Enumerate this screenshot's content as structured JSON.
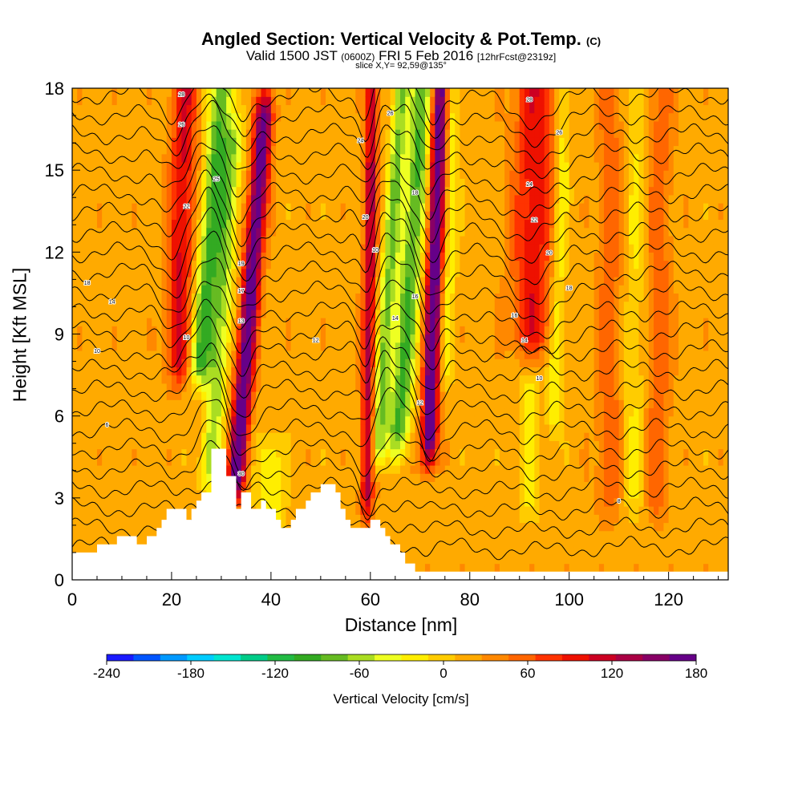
{
  "title": {
    "main": "Angled Section: Vertical Velocity & Pot.Temp.",
    "main_unit": "(C)",
    "valid_prefix": "Valid 1500 JST",
    "valid_z": "(0600Z)",
    "valid_date": "FRI 5 Feb 2016",
    "forecast": "[12hrFcst@2319z]",
    "slice": "slice X,Y= 92,59@135°"
  },
  "chart_data": {
    "type": "heatmap",
    "xlabel": "Distance [nm]",
    "ylabel": "Height [Kft MSL]",
    "xlim": [
      0,
      132
    ],
    "ylim": [
      0,
      18
    ],
    "xticks": [
      0,
      20,
      40,
      60,
      80,
      100,
      120
    ],
    "yticks": [
      0,
      3,
      6,
      9,
      12,
      15,
      18
    ],
    "colorbar": {
      "label": "Vertical Velocity [cm/s]",
      "ticks": [
        -240,
        -180,
        -120,
        -60,
        0,
        60,
        120,
        180
      ],
      "range": [
        -240,
        180
      ],
      "colors": [
        "#1a1aff",
        "#0055ff",
        "#0099ff",
        "#00ccff",
        "#00e5d0",
        "#00cc88",
        "#22bb44",
        "#33aa22",
        "#66bb22",
        "#aadd22",
        "#eeff22",
        "#ffee00",
        "#ffcc00",
        "#ffaa00",
        "#ff8800",
        "#ff6600",
        "#ff3300",
        "#ee1100",
        "#cc0022",
        "#aa0044",
        "#880066",
        "#660088"
      ]
    },
    "terrain": [
      [
        0,
        1
      ],
      [
        5,
        1
      ],
      [
        5,
        1.3
      ],
      [
        9,
        1.3
      ],
      [
        9,
        1.6
      ],
      [
        13,
        1.6
      ],
      [
        13,
        1.3
      ],
      [
        15,
        1.3
      ],
      [
        15,
        1.6
      ],
      [
        17,
        1.6
      ],
      [
        17,
        1.9
      ],
      [
        18,
        1.9
      ],
      [
        18,
        2.2
      ],
      [
        19,
        2.2
      ],
      [
        19,
        2.6
      ],
      [
        23,
        2.6
      ],
      [
        23,
        2.2
      ],
      [
        24,
        2.2
      ],
      [
        24,
        2.6
      ],
      [
        25,
        2.6
      ],
      [
        25,
        2.9
      ],
      [
        26,
        2.9
      ],
      [
        26,
        3.2
      ],
      [
        28,
        3.2
      ],
      [
        28,
        4.8
      ],
      [
        31,
        4.8
      ],
      [
        31,
        3.8
      ],
      [
        33,
        3.8
      ],
      [
        33,
        2.6
      ],
      [
        34,
        2.6
      ],
      [
        34,
        3.2
      ],
      [
        36,
        3.2
      ],
      [
        36,
        2.6
      ],
      [
        38,
        2.6
      ],
      [
        38,
        2.9
      ],
      [
        39,
        2.9
      ],
      [
        39,
        2.6
      ],
      [
        41,
        2.6
      ],
      [
        41,
        2.2
      ],
      [
        42,
        2.2
      ],
      [
        42,
        1.9
      ],
      [
        44,
        1.9
      ],
      [
        44,
        2.2
      ],
      [
        45,
        2.2
      ],
      [
        45,
        2.6
      ],
      [
        47,
        2.6
      ],
      [
        47,
        2.9
      ],
      [
        48,
        2.9
      ],
      [
        48,
        3.2
      ],
      [
        50,
        3.2
      ],
      [
        50,
        3.5
      ],
      [
        53,
        3.5
      ],
      [
        53,
        3.2
      ],
      [
        54,
        3.2
      ],
      [
        54,
        2.6
      ],
      [
        55,
        2.6
      ],
      [
        55,
        2.2
      ],
      [
        56,
        2.2
      ],
      [
        56,
        1.9
      ],
      [
        60,
        1.9
      ],
      [
        60,
        2.2
      ],
      [
        62,
        2.2
      ],
      [
        62,
        1.9
      ],
      [
        63,
        1.9
      ],
      [
        63,
        1.6
      ],
      [
        64,
        1.6
      ],
      [
        64,
        1.3
      ],
      [
        66,
        1.3
      ],
      [
        66,
        1
      ],
      [
        67,
        1
      ],
      [
        67,
        0.6
      ],
      [
        69,
        0.6
      ],
      [
        69,
        0.3
      ],
      [
        132,
        0.3
      ],
      [
        132,
        0
      ]
    ],
    "bands": [
      {
        "x": 21,
        "w": 2.5,
        "v": 90,
        "top": 18,
        "bottom": 8,
        "tilt": 0.4
      },
      {
        "x": 25,
        "w": 2.2,
        "v": -110,
        "top": 18,
        "bottom": 8,
        "tilt": 1.2
      },
      {
        "x": 28.5,
        "w": 2.0,
        "v": -80,
        "top": 16,
        "bottom": 4,
        "tilt": 1.1
      },
      {
        "x": 34,
        "w": 1.8,
        "v": 170,
        "top": 17,
        "bottom": 3.8,
        "tilt": 1.2
      },
      {
        "x": 59.5,
        "w": 1.3,
        "v": 110,
        "top": 18,
        "bottom": 3,
        "tilt": 0.2
      },
      {
        "x": 62,
        "w": 1.6,
        "v": -90,
        "top": 18,
        "bottom": 5,
        "tilt": 1.0
      },
      {
        "x": 66,
        "w": 2.2,
        "v": -110,
        "top": 18,
        "bottom": 5.5,
        "tilt": 1.1
      },
      {
        "x": 72,
        "w": 1.6,
        "v": 175,
        "top": 18,
        "bottom": 5,
        "tilt": 0.5
      },
      {
        "x": 75,
        "w": 1.5,
        "v": -40,
        "top": 18,
        "bottom": 8,
        "tilt": 0.4
      },
      {
        "x": 92,
        "w": 4.0,
        "v": 80,
        "top": 18,
        "bottom": 9,
        "tilt": 0.3
      },
      {
        "x": 97,
        "w": 1.5,
        "v": -45,
        "top": 18,
        "bottom": 6,
        "tilt": 0.5
      },
      {
        "x": 108,
        "w": 2.5,
        "v": 40,
        "top": 18,
        "bottom": 3,
        "tilt": 0.1
      },
      {
        "x": 113,
        "w": 2.0,
        "v": -30,
        "top": 18,
        "bottom": 3,
        "tilt": 0.1
      },
      {
        "x": 118,
        "w": 2.5,
        "v": 40,
        "top": 18,
        "bottom": 3,
        "tilt": 0.1
      },
      {
        "x": 40,
        "w": 2.5,
        "v": -50,
        "top": 4.5,
        "bottom": 2,
        "tilt": 0.0
      },
      {
        "x": 92,
        "w": 2.0,
        "v": -35,
        "top": 7,
        "bottom": 3,
        "tilt": 0.0
      }
    ],
    "isentropes": {
      "count": 24,
      "labels": [
        {
          "x": 22,
          "y": 17.8,
          "text": "28"
        },
        {
          "x": 22,
          "y": 16.7,
          "text": "26"
        },
        {
          "x": 29,
          "y": 14.7,
          "text": "25"
        },
        {
          "x": 23,
          "y": 13.7,
          "text": "22"
        },
        {
          "x": 34,
          "y": 11.6,
          "text": "19"
        },
        {
          "x": 34,
          "y": 10.6,
          "text": "17"
        },
        {
          "x": 34,
          "y": 9.5,
          "text": "13"
        },
        {
          "x": 23,
          "y": 8.9,
          "text": "10"
        },
        {
          "x": 3,
          "y": 10.9,
          "text": "18"
        },
        {
          "x": 8,
          "y": 10.2,
          "text": "14"
        },
        {
          "x": 5,
          "y": 8.4,
          "text": "10"
        },
        {
          "x": 7,
          "y": 5.7,
          "text": "6"
        },
        {
          "x": 34,
          "y": 3.9,
          "text": "30"
        },
        {
          "x": 49,
          "y": 8.8,
          "text": "12"
        },
        {
          "x": 58,
          "y": 16.1,
          "text": "24"
        },
        {
          "x": 64,
          "y": 17.1,
          "text": "26"
        },
        {
          "x": 59,
          "y": 13.3,
          "text": "20"
        },
        {
          "x": 61,
          "y": 12.1,
          "text": "10"
        },
        {
          "x": 69,
          "y": 14.2,
          "text": "18"
        },
        {
          "x": 69,
          "y": 10.4,
          "text": "16"
        },
        {
          "x": 65,
          "y": 9.6,
          "text": "14"
        },
        {
          "x": 70,
          "y": 6.5,
          "text": "12"
        },
        {
          "x": 92,
          "y": 17.6,
          "text": "28"
        },
        {
          "x": 98,
          "y": 16.4,
          "text": "26"
        },
        {
          "x": 92,
          "y": 14.5,
          "text": "24"
        },
        {
          "x": 93,
          "y": 13.2,
          "text": "22"
        },
        {
          "x": 96,
          "y": 12.0,
          "text": "20"
        },
        {
          "x": 100,
          "y": 10.7,
          "text": "18"
        },
        {
          "x": 89,
          "y": 9.7,
          "text": "16"
        },
        {
          "x": 91,
          "y": 8.8,
          "text": "14"
        },
        {
          "x": 94,
          "y": 7.4,
          "text": "10"
        },
        {
          "x": 110,
          "y": 2.9,
          "text": "8"
        }
      ]
    }
  }
}
